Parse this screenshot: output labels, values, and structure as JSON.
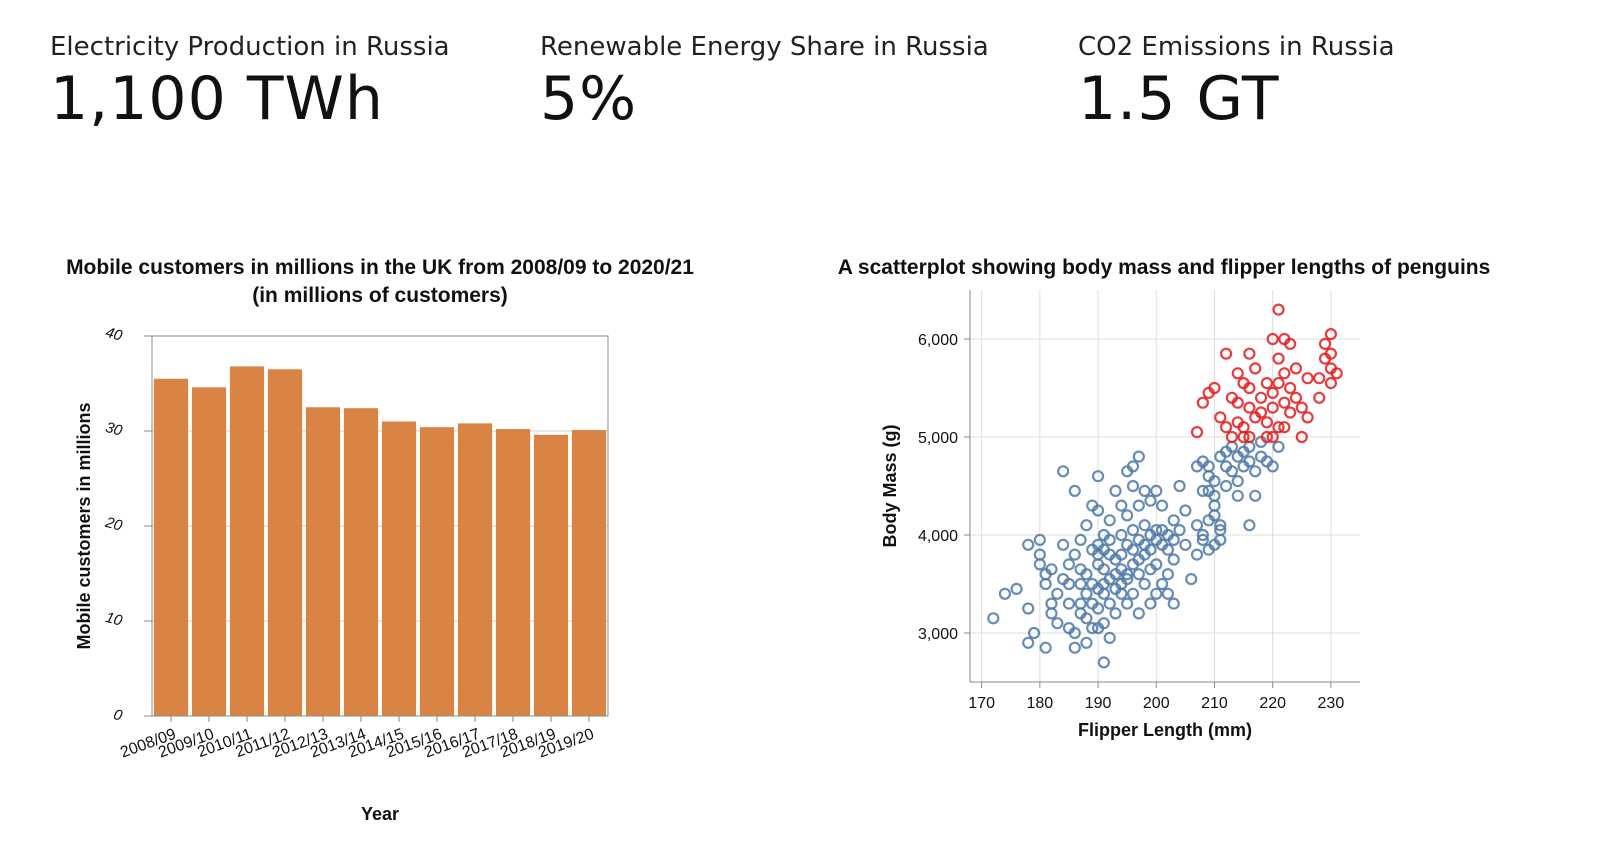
{
  "kpis": [
    {
      "label": "Electricity Production in Russia",
      "value": "1,100 TWh"
    },
    {
      "label": "Renewable Energy Share in Russia",
      "value": "5%"
    },
    {
      "label": "CO2 Emissions in Russia",
      "value": "1.5 GT"
    }
  ],
  "chart_data": [
    {
      "type": "bar",
      "title": "Mobile customers in millions in the UK from 2008/09 to 2020/21",
      "subtitle": "(in millions of customers)",
      "xlabel": "Year",
      "ylabel": "Mobile customers in millions",
      "ylim": [
        0,
        40
      ],
      "yticks": [
        0,
        10,
        20,
        30,
        40
      ],
      "categories": [
        "2008/09",
        "2009/10",
        "2010/11",
        "2011/12",
        "2012/13",
        "2013/14",
        "2014/15",
        "2015/16",
        "2016/17",
        "2017/18",
        "2018/19",
        "2019/20"
      ],
      "values": [
        35.5,
        34.6,
        36.8,
        36.5,
        32.5,
        32.4,
        31.0,
        30.4,
        30.8,
        30.2,
        29.6,
        30.1
      ],
      "bar_color": "#d98445",
      "grid": "horizontal"
    },
    {
      "type": "scatter",
      "title": "A scatterplot showing body mass and flipper lengths of penguins",
      "xlabel": "Flipper Length (mm)",
      "ylabel": "Body Mass (g)",
      "xlim": [
        168,
        235
      ],
      "ylim": [
        2500,
        6500
      ],
      "xticks": [
        170,
        180,
        190,
        200,
        210,
        220,
        230
      ],
      "yticks": [
        3000,
        4000,
        5000,
        6000
      ],
      "ytick_labels": [
        "3,000",
        "4,000",
        "5,000",
        "6,000"
      ],
      "grid": true,
      "series": [
        {
          "color": "#4c78a8",
          "points": [
            [
              172,
              3150
            ],
            [
              174,
              3400
            ],
            [
              176,
              3450
            ],
            [
              178,
              3250
            ],
            [
              178,
              3900
            ],
            [
              178,
              2900
            ],
            [
              179,
              3000
            ],
            [
              180,
              3950
            ],
            [
              180,
              3700
            ],
            [
              180,
              3800
            ],
            [
              181,
              3600
            ],
            [
              181,
              3500
            ],
            [
              181,
              2850
            ],
            [
              182,
              3300
            ],
            [
              182,
              3200
            ],
            [
              182,
              3650
            ],
            [
              183,
              3100
            ],
            [
              183,
              3400
            ],
            [
              184,
              3550
            ],
            [
              184,
              3900
            ],
            [
              184,
              4650
            ],
            [
              185,
              3500
            ],
            [
              185,
              3300
            ],
            [
              185,
              3700
            ],
            [
              185,
              3050
            ],
            [
              186,
              3000
            ],
            [
              186,
              3800
            ],
            [
              186,
              2850
            ],
            [
              186,
              4450
            ],
            [
              187,
              3300
            ],
            [
              187,
              3500
            ],
            [
              187,
              3650
            ],
            [
              187,
              3200
            ],
            [
              187,
              3950
            ],
            [
              188,
              2900
            ],
            [
              188,
              3600
            ],
            [
              188,
              3400
            ],
            [
              188,
              4100
            ],
            [
              188,
              3150
            ],
            [
              189,
              3850
            ],
            [
              189,
              3500
            ],
            [
              189,
              3300
            ],
            [
              189,
              3050
            ],
            [
              189,
              4300
            ],
            [
              190,
              3450
            ],
            [
              190,
              3700
            ],
            [
              190,
              3900
            ],
            [
              190,
              3250
            ],
            [
              190,
              4600
            ],
            [
              190,
              4250
            ],
            [
              190,
              3800
            ],
            [
              190,
              3050
            ],
            [
              191,
              3650
            ],
            [
              191,
              3400
            ],
            [
              191,
              3500
            ],
            [
              191,
              4000
            ],
            [
              191,
              3850
            ],
            [
              191,
              3100
            ],
            [
              191,
              2700
            ],
            [
              192,
              3550
            ],
            [
              192,
              3800
            ],
            [
              192,
              3300
            ],
            [
              192,
              4150
            ],
            [
              192,
              3950
            ],
            [
              192,
              2950
            ],
            [
              193,
              3600
            ],
            [
              193,
              3750
            ],
            [
              193,
              3450
            ],
            [
              193,
              3200
            ],
            [
              193,
              4450
            ],
            [
              194,
              3500
            ],
            [
              194,
              3800
            ],
            [
              194,
              3650
            ],
            [
              194,
              3400
            ],
            [
              194,
              4000
            ],
            [
              194,
              4300
            ],
            [
              195,
              3600
            ],
            [
              195,
              3900
            ],
            [
              195,
              4650
            ],
            [
              195,
              3300
            ],
            [
              195,
              3550
            ],
            [
              195,
              4200
            ],
            [
              196,
              3700
            ],
            [
              196,
              3850
            ],
            [
              196,
              4050
            ],
            [
              196,
              3400
            ],
            [
              196,
              4700
            ],
            [
              196,
              4500
            ],
            [
              197,
              3600
            ],
            [
              197,
              3950
            ],
            [
              197,
              3750
            ],
            [
              197,
              4300
            ],
            [
              197,
              3200
            ],
            [
              197,
              4800
            ],
            [
              198,
              3800
            ],
            [
              198,
              4100
            ],
            [
              198,
              3500
            ],
            [
              198,
              4450
            ],
            [
              198,
              3900
            ],
            [
              199,
              3650
            ],
            [
              199,
              3850
            ],
            [
              199,
              4000
            ],
            [
              199,
              3300
            ],
            [
              199,
              4350
            ],
            [
              200,
              3700
            ],
            [
              200,
              3950
            ],
            [
              200,
              4050
            ],
            [
              200,
              3400
            ],
            [
              200,
              4450
            ],
            [
              201,
              3500
            ],
            [
              201,
              3900
            ],
            [
              201,
              4050
            ],
            [
              201,
              4300
            ],
            [
              202,
              3600
            ],
            [
              202,
              3850
            ],
            [
              202,
              4000
            ],
            [
              202,
              3400
            ],
            [
              203,
              3750
            ],
            [
              203,
              3950
            ],
            [
              203,
              3300
            ],
            [
              203,
              4150
            ],
            [
              204,
              4050
            ],
            [
              204,
              4500
            ],
            [
              205,
              3900
            ],
            [
              205,
              4250
            ],
            [
              206,
              3550
            ],
            [
              207,
              4700
            ],
            [
              207,
              4100
            ],
            [
              207,
              3800
            ],
            [
              208,
              3950
            ],
            [
              208,
              4450
            ],
            [
              208,
              4750
            ],
            [
              208,
              4000
            ],
            [
              209,
              3850
            ],
            [
              209,
              4150
            ],
            [
              209,
              4450
            ],
            [
              209,
              4700
            ],
            [
              209,
              4600
            ],
            [
              210,
              3900
            ],
            [
              210,
              4200
            ],
            [
              210,
              4400
            ],
            [
              210,
              4300
            ],
            [
              210,
              4550
            ],
            [
              211,
              3950
            ],
            [
              211,
              4800
            ],
            [
              211,
              4100
            ],
            [
              211,
              4050
            ],
            [
              212,
              4850
            ],
            [
              212,
              4500
            ],
            [
              212,
              4700
            ],
            [
              213,
              4900
            ],
            [
              213,
              4650
            ],
            [
              214,
              4400
            ],
            [
              214,
              4800
            ],
            [
              214,
              4550
            ],
            [
              215,
              4700
            ],
            [
              215,
              4850
            ],
            [
              216,
              4750
            ],
            [
              216,
              4100
            ],
            [
              216,
              4900
            ],
            [
              217,
              4400
            ],
            [
              217,
              4650
            ],
            [
              218,
              4800
            ],
            [
              218,
              4950
            ],
            [
              219,
              4750
            ],
            [
              220,
              4700
            ],
            [
              221,
              4900
            ]
          ]
        },
        {
          "color": "#e41a1c",
          "points": [
            [
              207,
              5050
            ],
            [
              208,
              5350
            ],
            [
              209,
              5450
            ],
            [
              210,
              5500
            ],
            [
              211,
              5200
            ],
            [
              212,
              5100
            ],
            [
              212,
              5850
            ],
            [
              213,
              5000
            ],
            [
              213,
              5400
            ],
            [
              214,
              5150
            ],
            [
              214,
              5350
            ],
            [
              214,
              5650
            ],
            [
              215,
              5000
            ],
            [
              215,
              5550
            ],
            [
              215,
              5100
            ],
            [
              216,
              5300
            ],
            [
              216,
              5500
            ],
            [
              216,
              5850
            ],
            [
              216,
              5000
            ],
            [
              217,
              5200
            ],
            [
              217,
              5700
            ],
            [
              218,
              5250
            ],
            [
              218,
              5400
            ],
            [
              219,
              5000
            ],
            [
              219,
              5550
            ],
            [
              219,
              5150
            ],
            [
              220,
              5000
            ],
            [
              220,
              5300
            ],
            [
              220,
              5450
            ],
            [
              220,
              6000
            ],
            [
              221,
              5100
            ],
            [
              221,
              5550
            ],
            [
              221,
              6300
            ],
            [
              221,
              5800
            ],
            [
              222,
              5350
            ],
            [
              222,
              5650
            ],
            [
              222,
              5100
            ],
            [
              222,
              6000
            ],
            [
              223,
              5500
            ],
            [
              223,
              5950
            ],
            [
              223,
              5250
            ],
            [
              224,
              5400
            ],
            [
              224,
              5700
            ],
            [
              225,
              5300
            ],
            [
              225,
              5000
            ],
            [
              226,
              5200
            ],
            [
              226,
              5600
            ],
            [
              228,
              5400
            ],
            [
              228,
              5600
            ],
            [
              229,
              5800
            ],
            [
              229,
              5950
            ],
            [
              230,
              5550
            ],
            [
              230,
              5850
            ],
            [
              230,
              6050
            ],
            [
              230,
              5700
            ],
            [
              231,
              5650
            ]
          ]
        }
      ]
    }
  ]
}
